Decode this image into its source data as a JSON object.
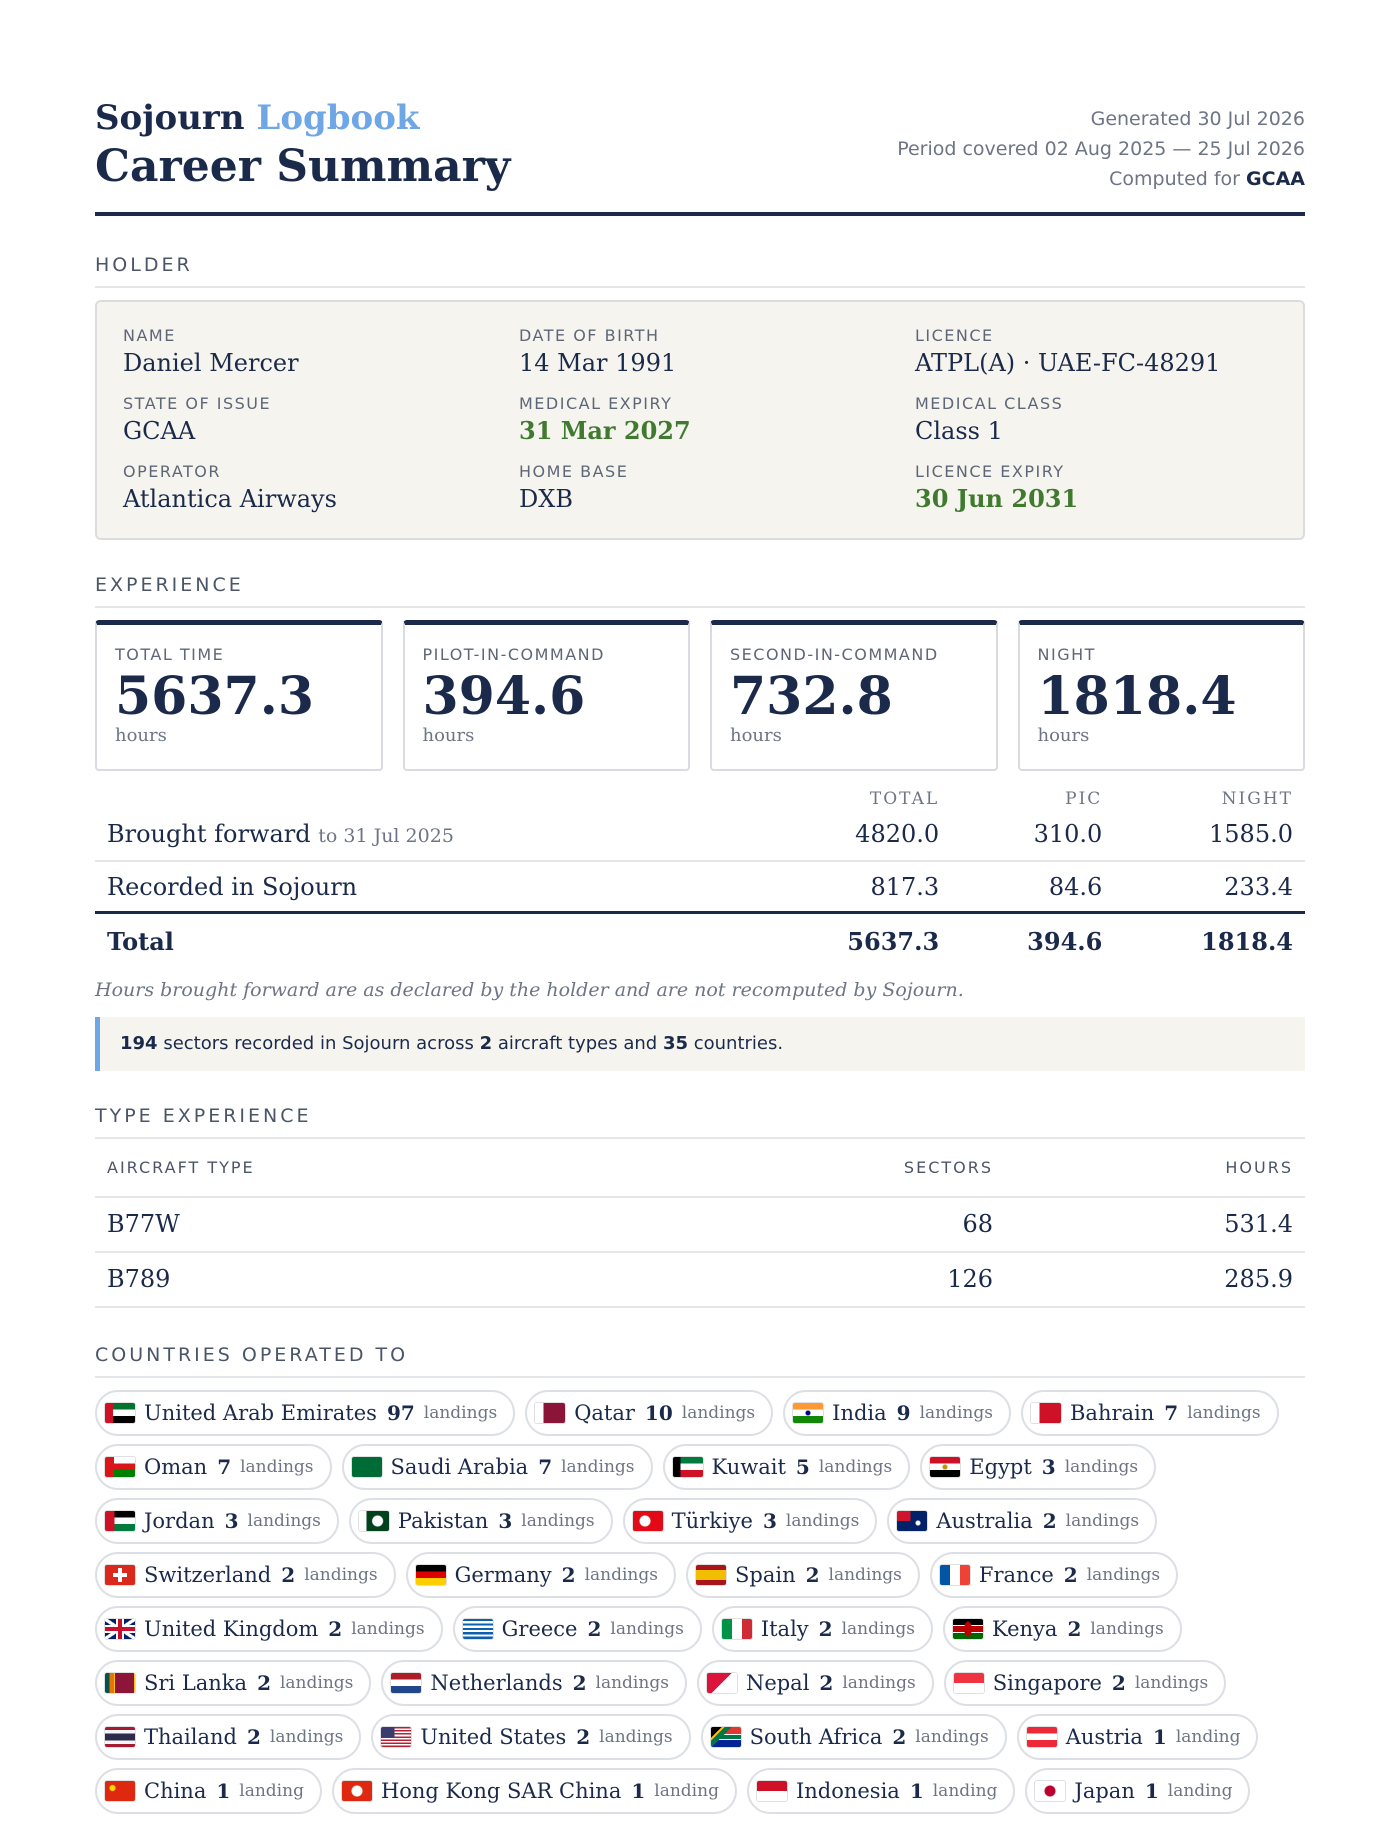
{
  "header": {
    "brand_main": "Sojourn",
    "brand_accent": "Logbook",
    "title": "Career Summary",
    "generated_label": "Generated",
    "generated_value": "30 Jul 2026",
    "period_label": "Period covered",
    "period_value": "02 Aug 2025 — 25 Jul 2026",
    "computed_label": "Computed for",
    "computed_value": "GCAA"
  },
  "holder": {
    "section_title": "HOLDER",
    "fields": [
      {
        "label": "NAME",
        "value": "Daniel Mercer",
        "highlight": false
      },
      {
        "label": "DATE OF BIRTH",
        "value": "14 Mar 1991",
        "highlight": false
      },
      {
        "label": "LICENCE",
        "value": "ATPL(A) · UAE-FC-48291",
        "highlight": false
      },
      {
        "label": "STATE OF ISSUE",
        "value": "GCAA",
        "highlight": false
      },
      {
        "label": "MEDICAL EXPIRY",
        "value": "31 Mar 2027",
        "highlight": true
      },
      {
        "label": "MEDICAL CLASS",
        "value": "Class 1",
        "highlight": false
      },
      {
        "label": "OPERATOR",
        "value": "Atlantica Airways",
        "highlight": false
      },
      {
        "label": "HOME BASE",
        "value": "DXB",
        "highlight": false
      },
      {
        "label": "LICENCE EXPIRY",
        "value": "30 Jun 2031",
        "highlight": true
      }
    ]
  },
  "experience": {
    "section_title": "EXPERIENCE",
    "cards": [
      {
        "label": "TOTAL TIME",
        "value": "5637.3",
        "unit": "hours"
      },
      {
        "label": "PILOT-IN-COMMAND",
        "value": "394.6",
        "unit": "hours"
      },
      {
        "label": "SECOND-IN-COMMAND",
        "value": "732.8",
        "unit": "hours"
      },
      {
        "label": "NIGHT",
        "value": "1818.4",
        "unit": "hours"
      }
    ],
    "table": {
      "columns": [
        "TOTAL",
        "PIC",
        "NIGHT"
      ],
      "rows": [
        {
          "label": "Brought forward",
          "sub": "to 31 Jul 2025",
          "total": "4820.0",
          "pic": "310.0",
          "night": "1585.0"
        },
        {
          "label": "Recorded in Sojourn",
          "sub": "",
          "total": "817.3",
          "pic": "84.6",
          "night": "233.4"
        }
      ],
      "total_row": {
        "label": "Total",
        "total": "5637.3",
        "pic": "394.6",
        "night": "1818.4"
      }
    },
    "footnote": "Hours brought forward are as declared by the holder and are not recomputed by Sojourn.",
    "summary": {
      "sectors": "194",
      "text1": "sectors recorded in Sojourn across",
      "types": "2",
      "text2": "aircraft types and",
      "countries": "35",
      "text3": "countries."
    }
  },
  "type_experience": {
    "section_title": "TYPE EXPERIENCE",
    "columns": [
      "AIRCRAFT TYPE",
      "SECTORS",
      "HOURS"
    ],
    "rows": [
      {
        "type": "B77W",
        "sectors": "68",
        "hours": "531.4"
      },
      {
        "type": "B789",
        "sectors": "126",
        "hours": "285.9"
      }
    ]
  },
  "countries": {
    "section_title": "COUNTRIES OPERATED TO",
    "items": [
      {
        "name": "United Arab Emirates",
        "count": "97",
        "unit": "landings",
        "flag": "ae"
      },
      {
        "name": "Qatar",
        "count": "10",
        "unit": "landings",
        "flag": "qa"
      },
      {
        "name": "India",
        "count": "9",
        "unit": "landings",
        "flag": "in"
      },
      {
        "name": "Bahrain",
        "count": "7",
        "unit": "landings",
        "flag": "bh"
      },
      {
        "name": "Oman",
        "count": "7",
        "unit": "landings",
        "flag": "om"
      },
      {
        "name": "Saudi Arabia",
        "count": "7",
        "unit": "landings",
        "flag": "sa"
      },
      {
        "name": "Kuwait",
        "count": "5",
        "unit": "landings",
        "flag": "kw"
      },
      {
        "name": "Egypt",
        "count": "3",
        "unit": "landings",
        "flag": "eg"
      },
      {
        "name": "Jordan",
        "count": "3",
        "unit": "landings",
        "flag": "jo"
      },
      {
        "name": "Pakistan",
        "count": "3",
        "unit": "landings",
        "flag": "pk"
      },
      {
        "name": "Türkiye",
        "count": "3",
        "unit": "landings",
        "flag": "tr"
      },
      {
        "name": "Australia",
        "count": "2",
        "unit": "landings",
        "flag": "au"
      },
      {
        "name": "Switzerland",
        "count": "2",
        "unit": "landings",
        "flag": "ch"
      },
      {
        "name": "Germany",
        "count": "2",
        "unit": "landings",
        "flag": "de"
      },
      {
        "name": "Spain",
        "count": "2",
        "unit": "landings",
        "flag": "es"
      },
      {
        "name": "France",
        "count": "2",
        "unit": "landings",
        "flag": "fr"
      },
      {
        "name": "United Kingdom",
        "count": "2",
        "unit": "landings",
        "flag": "gb"
      },
      {
        "name": "Greece",
        "count": "2",
        "unit": "landings",
        "flag": "gr"
      },
      {
        "name": "Italy",
        "count": "2",
        "unit": "landings",
        "flag": "it"
      },
      {
        "name": "Kenya",
        "count": "2",
        "unit": "landings",
        "flag": "ke"
      },
      {
        "name": "Sri Lanka",
        "count": "2",
        "unit": "landings",
        "flag": "lk"
      },
      {
        "name": "Netherlands",
        "count": "2",
        "unit": "landings",
        "flag": "nl"
      },
      {
        "name": "Nepal",
        "count": "2",
        "unit": "landings",
        "flag": "np"
      },
      {
        "name": "Singapore",
        "count": "2",
        "unit": "landings",
        "flag": "sg"
      },
      {
        "name": "Thailand",
        "count": "2",
        "unit": "landings",
        "flag": "th"
      },
      {
        "name": "United States",
        "count": "2",
        "unit": "landings",
        "flag": "us"
      },
      {
        "name": "South Africa",
        "count": "2",
        "unit": "landings",
        "flag": "za"
      },
      {
        "name": "Austria",
        "count": "1",
        "unit": "landing",
        "flag": "at"
      },
      {
        "name": "China",
        "count": "1",
        "unit": "landing",
        "flag": "cn"
      },
      {
        "name": "Hong Kong SAR China",
        "count": "1",
        "unit": "landing",
        "flag": "hk"
      },
      {
        "name": "Indonesia",
        "count": "1",
        "unit": "landing",
        "flag": "id"
      },
      {
        "name": "Japan",
        "count": "1",
        "unit": "landing",
        "flag": "jp"
      }
    ]
  }
}
